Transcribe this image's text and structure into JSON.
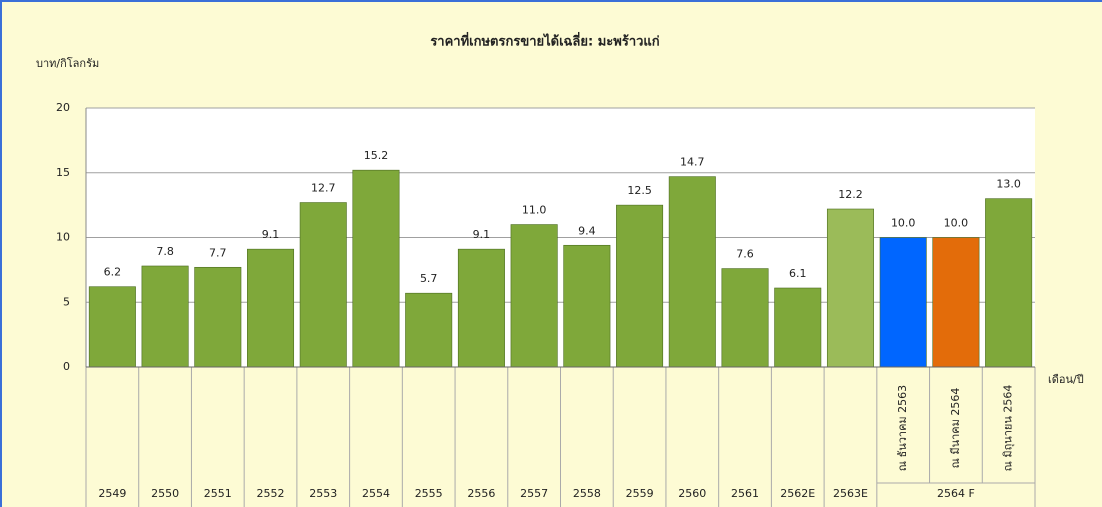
{
  "chart_data": {
    "type": "bar",
    "title": "ราคาที่เกษตรกรขายได้เฉลี่ย: มะพร้าวแก่",
    "y_label": "บาท/กิโลกรัม",
    "x_label": "เดือน/ปี",
    "categories": [
      "2549",
      "2550",
      "2551",
      "2552",
      "2553",
      "2554",
      "2555",
      "2556",
      "2557",
      "2558",
      "2559",
      "2560",
      "2561",
      "2562E",
      "2563E",
      "ณ ธันวาคม 2563",
      "ณ มีนาคม 2564",
      "ณ มิถุนายน 2564"
    ],
    "category_group": {
      "label": "2564 F",
      "size": 3
    },
    "values": [
      6.2,
      7.8,
      7.7,
      9.1,
      12.7,
      15.2,
      5.7,
      9.1,
      11.0,
      9.4,
      12.5,
      14.7,
      7.6,
      6.1,
      12.2,
      10.0,
      10.0,
      13.0
    ],
    "value_labels": [
      "6.2",
      "7.8",
      "7.7",
      "9.1",
      "12.7",
      "15.2",
      "5.7",
      "9.1",
      "11.0",
      "9.4",
      "12.5",
      "14.7",
      "7.6",
      "6.1",
      "12.2",
      "10.0",
      "10.0",
      "13.0"
    ],
    "colors": [
      "#7fa83a",
      "#7fa83a",
      "#7fa83a",
      "#7fa83a",
      "#7fa83a",
      "#7fa83a",
      "#7fa83a",
      "#7fa83a",
      "#7fa83a",
      "#7fa83a",
      "#7fa83a",
      "#7fa83a",
      "#7fa83a",
      "#7fa83a",
      "#9bbb59",
      "#0066ff",
      "#e36c0a",
      "#7fa83a"
    ],
    "ylim": [
      0,
      20
    ],
    "yticks": [
      0,
      5,
      10,
      15,
      20
    ],
    "grid": true
  }
}
